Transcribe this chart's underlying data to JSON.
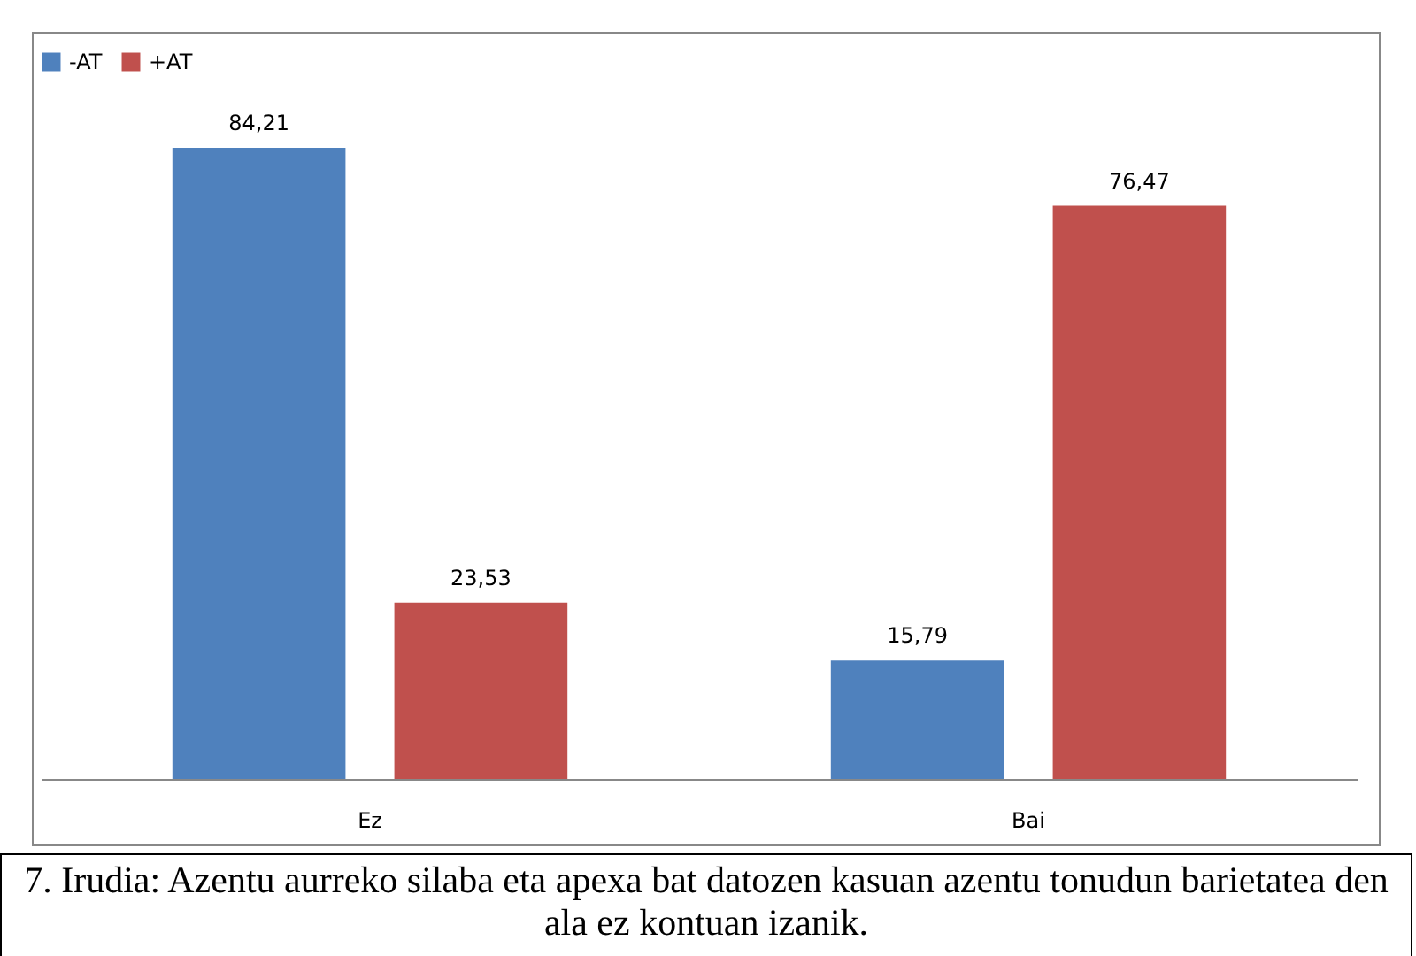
{
  "chart_data": {
    "type": "bar",
    "categories": [
      "Ez",
      "Bai"
    ],
    "series": [
      {
        "name": "-AT",
        "color": "#4f81bd",
        "values": [
          84.21,
          15.79
        ],
        "value_labels": [
          "84,21",
          "15,79"
        ]
      },
      {
        "name": "+AT",
        "color": "#c0504d",
        "values": [
          23.53,
          76.47
        ],
        "value_labels": [
          "23,53",
          "76,47"
        ]
      }
    ],
    "legend": "top",
    "grid": false,
    "annotations": [
      "7. Irudia: Azentu aurreko silaba eta apexa bat datozen kasuan azentu tonudun barietatea den ala ez kontuan izanik."
    ]
  }
}
